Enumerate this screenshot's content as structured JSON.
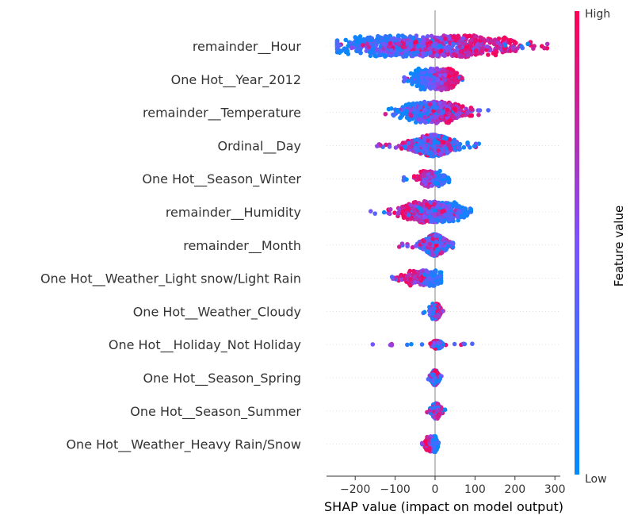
{
  "chart_data": {
    "type": "scatter",
    "subtype": "shap-beeswarm",
    "title": "",
    "xlabel": "SHAP value (impact on model output)",
    "ylabel": "",
    "xlim": [
      -270,
      305
    ],
    "xticks": [
      -200,
      -100,
      0,
      100,
      200,
      300
    ],
    "xtick_labels": [
      "−200",
      "−100",
      "0",
      "100",
      "200",
      "300"
    ],
    "grid": false,
    "colorbar": {
      "label": "Feature value",
      "high_label": "High",
      "low_label": "Low",
      "low_color": "#008bfb",
      "mid_color": "#7c52ff",
      "high_color": "#ff0052"
    },
    "features": [
      {
        "name": "remainder__Hour",
        "min": -245,
        "max": 290,
        "low_center": -150,
        "high_center": 110,
        "spread": "wide"
      },
      {
        "name": "One Hot__Year_2012",
        "min": -80,
        "max": 75,
        "low_center": -40,
        "high_center": 40,
        "spread": "two-cluster"
      },
      {
        "name": "remainder__Temperature",
        "min": -125,
        "max": 135,
        "low_center": -40,
        "high_center": 30,
        "spread": "medium"
      },
      {
        "name": "Ordinal__Day",
        "min": -155,
        "max": 110,
        "low_center": 0,
        "high_center": -10,
        "spread": "mixed"
      },
      {
        "name": "One Hot__Season_Winter",
        "min": -80,
        "max": 35,
        "low_center": 15,
        "high_center": -30,
        "spread": "narrow"
      },
      {
        "name": "remainder__Humidity",
        "min": -170,
        "max": 90,
        "low_center": 30,
        "high_center": -40,
        "spread": "medium"
      },
      {
        "name": "remainder__Month",
        "min": -90,
        "max": 45,
        "low_center": 0,
        "high_center": 0,
        "spread": "mixed"
      },
      {
        "name": "One Hot__Weather_Light snow/Light Rain",
        "min": -110,
        "max": 15,
        "low_center": 3,
        "high_center": -60,
        "spread": "narrow"
      },
      {
        "name": "One Hot__Weather_Cloudy",
        "min": -30,
        "max": 20,
        "low_center": -5,
        "high_center": 5,
        "spread": "narrow"
      },
      {
        "name": "One Hot__Holiday_Not Holiday",
        "min": -165,
        "max": 95,
        "low_center": 10,
        "high_center": 0,
        "spread": "spike"
      },
      {
        "name": "One Hot__Season_Spring",
        "min": -20,
        "max": 20,
        "low_center": 0,
        "high_center": 0,
        "spread": "narrow"
      },
      {
        "name": "One Hot__Season_Summer",
        "min": -20,
        "max": 25,
        "low_center": 0,
        "high_center": 5,
        "spread": "narrow"
      },
      {
        "name": "One Hot__Weather_Heavy Rain/Snow",
        "min": -35,
        "max": 10,
        "low_center": 2,
        "high_center": -20,
        "spread": "narrow"
      }
    ]
  }
}
